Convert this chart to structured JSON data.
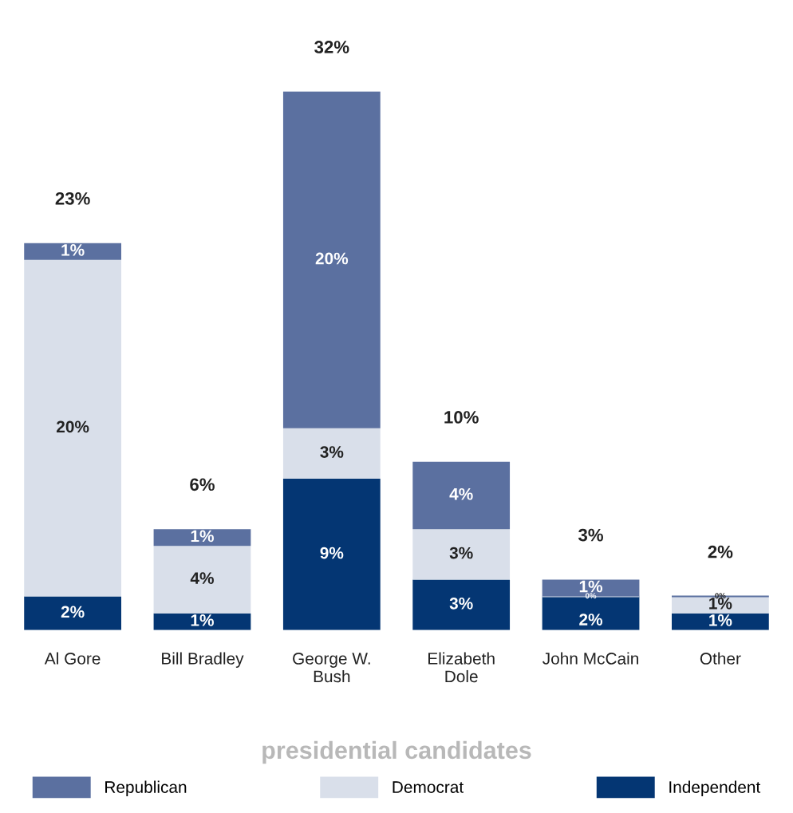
{
  "chart_data": {
    "type": "bar",
    "stacked": true,
    "xlabel": "presidential candidates",
    "categories": [
      "Al Gore",
      "Bill Bradley",
      "George W.\nBush",
      "Elizabeth\nDole",
      "John McCain",
      "Other"
    ],
    "series": [
      {
        "name": "Independent",
        "color": "#043673",
        "values": [
          2,
          1,
          9,
          3,
          2,
          1
        ],
        "value_labels": [
          "2%",
          "1%",
          "9%",
          "3%",
          "2%",
          "1%"
        ]
      },
      {
        "name": "Democrat",
        "color": "#d9dfea",
        "values": [
          20,
          4,
          3,
          3,
          0,
          1
        ],
        "value_labels": [
          "20%",
          "4%",
          "3%",
          "3%",
          "0%",
          "1%"
        ]
      },
      {
        "name": "Republican",
        "color": "#5b70a0",
        "values": [
          1,
          1,
          20,
          4,
          1,
          0
        ],
        "value_labels": [
          "1%",
          "1%",
          "20%",
          "4%",
          "1%",
          "0%"
        ]
      }
    ],
    "totals": [
      "23%",
      "6%",
      "32%",
      "10%",
      "3%",
      "2%"
    ],
    "legend": "bottom",
    "grid": false
  }
}
